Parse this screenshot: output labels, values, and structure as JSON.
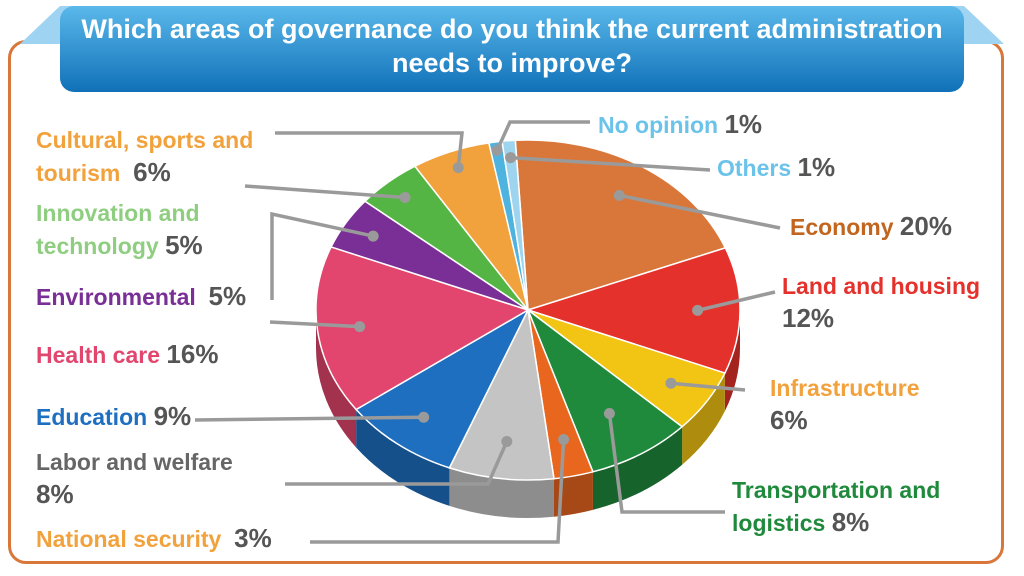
{
  "title": "Which areas of governance do you think the current administration needs to improve?",
  "title_lines": [
    "Which areas of governance do you think the current administration",
    "needs to improve?"
  ],
  "chart_data": {
    "type": "pie",
    "title": "Which areas of governance do you think the current administration needs to improve?",
    "unit": "%",
    "slices": [
      {
        "label": "Economy",
        "value": 20,
        "value_label": "20%",
        "color": "#d9773a"
      },
      {
        "label": "Land and housing",
        "value": 12,
        "value_label": "12%",
        "color": "#e5312b"
      },
      {
        "label": "Infrastructure",
        "value": 6,
        "value_label": "6%",
        "color": "#f2c414"
      },
      {
        "label": "Transportation and logistics",
        "value": 8,
        "value_label": "8%",
        "color": "#1f8a3c"
      },
      {
        "label": "National security",
        "value": 3,
        "value_label": "3%",
        "color": "#e8661e"
      },
      {
        "label": "Labor and welfare",
        "value": 8,
        "value_label": "8%",
        "color": "#c4c4c4"
      },
      {
        "label": "Education",
        "value": 9,
        "value_label": "9%",
        "color": "#1f6fc0"
      },
      {
        "label": "Health care",
        "value": 16,
        "value_label": "16%",
        "color": "#e2466e"
      },
      {
        "label": "Environmental",
        "value": 5,
        "value_label": "5%",
        "color": "#7a2f96"
      },
      {
        "label": "Innovation and technology",
        "value": 5,
        "value_label": "5%",
        "color": "#55b544"
      },
      {
        "label": "Cultural, sports and tourism",
        "value": 6,
        "value_label": "6%",
        "color": "#f2a23c"
      },
      {
        "label": "No opinion",
        "value": 1,
        "value_label": "1%",
        "color": "#4fb3e0"
      },
      {
        "label": "Others",
        "value": 1,
        "value_label": "1%",
        "color": "#9fd4ef"
      }
    ]
  },
  "label_text": {
    "cultural": [
      "Cultural, sports and",
      "tourism"
    ],
    "innovation": [
      "Innovation and",
      "technology"
    ],
    "land": [
      "Land and housing"
    ],
    "labor": [
      "Labor and welfare"
    ],
    "transport": [
      "Transportation and",
      "logistics"
    ]
  },
  "colors": {
    "banner_top": "#5ab8ea",
    "banner_bottom": "#1071b8",
    "frame": "#d9773a",
    "leader_line": "#9a9a9a",
    "percent_text": "#555555"
  }
}
